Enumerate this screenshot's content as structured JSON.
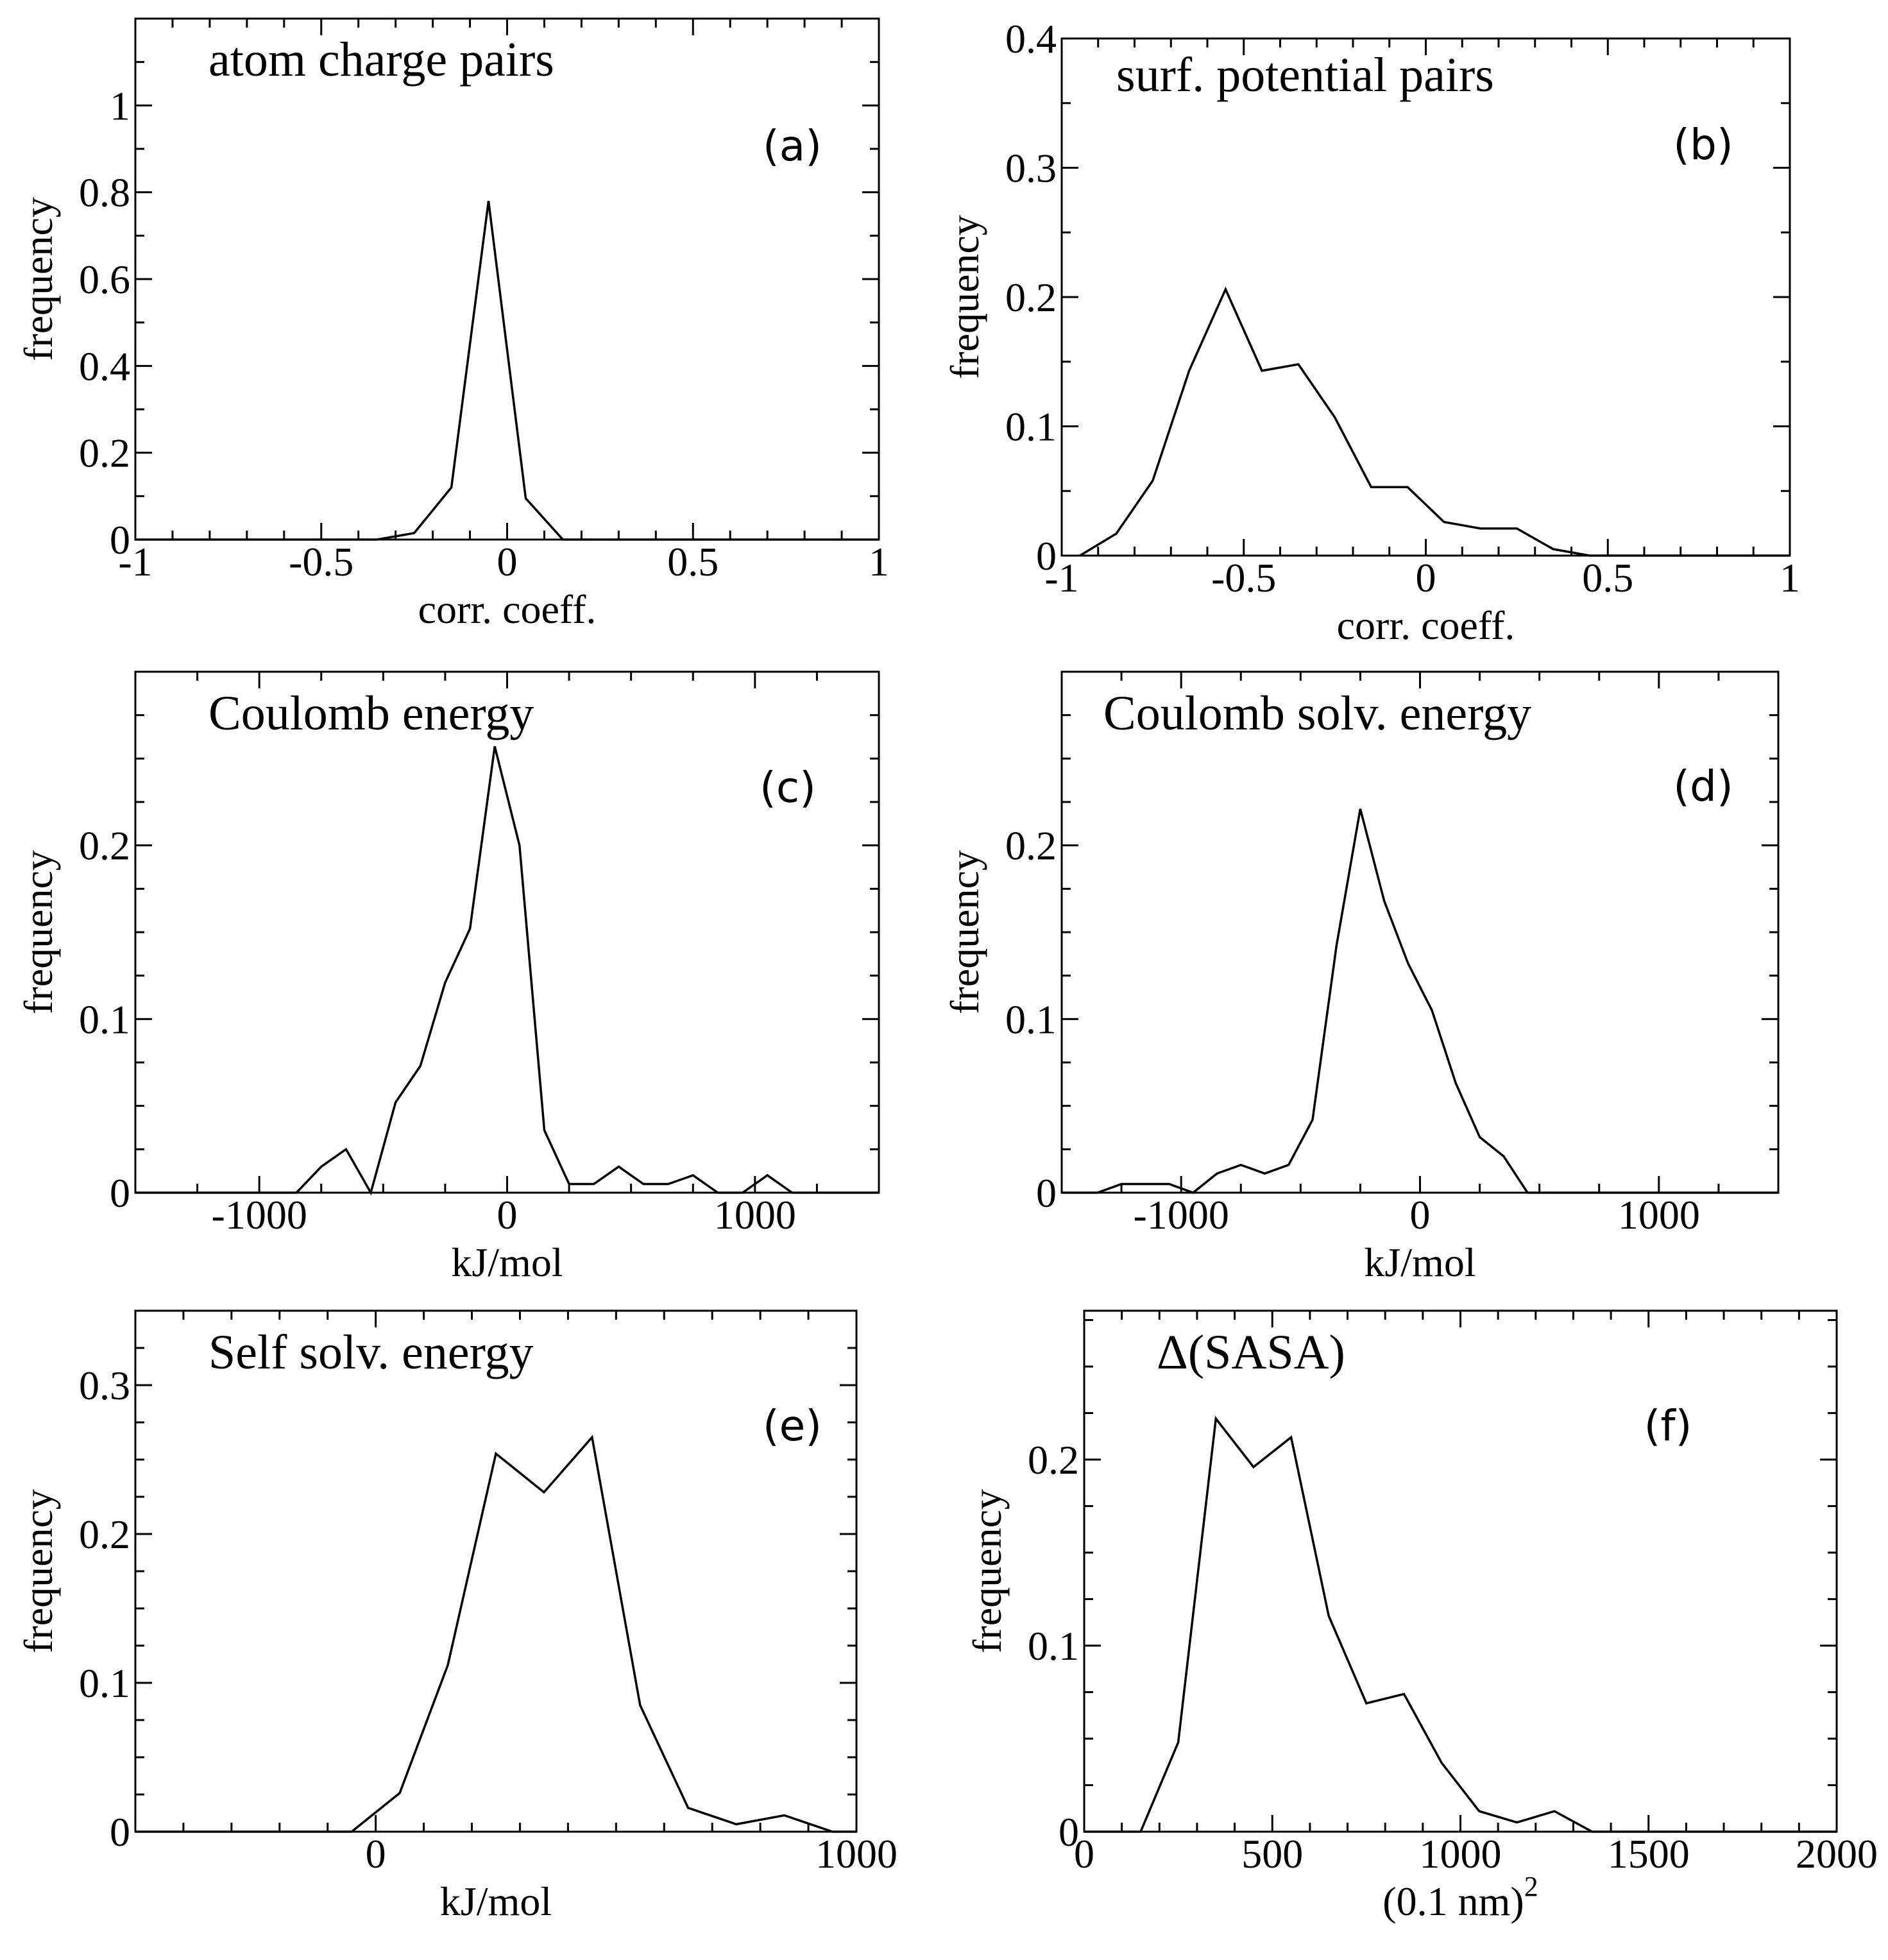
{
  "figure_title": "",
  "chart_data": [
    {
      "id": "a",
      "type": "line",
      "panel_label": "(a)",
      "title": "atom charge pairs",
      "xlabel": "corr. coeff.",
      "ylabel": "frequency",
      "xlim": [
        -1,
        1
      ],
      "ylim": [
        0,
        1.2
      ],
      "xticks": [
        -1,
        -0.5,
        0,
        0.5,
        1
      ],
      "xtick_labels": [
        "-1",
        "-0.5",
        "0",
        "0.5",
        "1"
      ],
      "yticks": [
        0,
        0.2,
        0.4,
        0.6,
        0.8,
        1
      ],
      "ytick_labels": [
        "0",
        "0.2",
        "0.4",
        "0.6",
        "0.8",
        "1"
      ],
      "x_minor": 0.1,
      "y_minor": 0.1,
      "x": [
        -1,
        -0.35,
        -0.25,
        -0.15,
        -0.05,
        0.05,
        0.15,
        1
      ],
      "y": [
        0,
        0,
        0.015,
        0.12,
        0.78,
        0.095,
        0,
        0
      ]
    },
    {
      "id": "b",
      "type": "line",
      "panel_label": "(b)",
      "title": "surf. potential pairs",
      "xlabel": "corr. coeff.",
      "ylabel": "frequency",
      "xlim": [
        -1,
        1
      ],
      "ylim": [
        0,
        0.4
      ],
      "xticks": [
        -1,
        -0.5,
        0,
        0.5,
        1
      ],
      "xtick_labels": [
        "-1",
        "-0.5",
        "0",
        "0.5",
        "1"
      ],
      "yticks": [
        0,
        0.1,
        0.2,
        0.3,
        0.4
      ],
      "ytick_labels": [
        "0",
        "0.1",
        "0.2",
        "0.3",
        "0.4"
      ],
      "x_minor": 0.1,
      "y_minor": 0.05,
      "x": [
        -0.95,
        -0.85,
        -0.75,
        -0.65,
        -0.55,
        -0.45,
        -0.35,
        -0.25,
        -0.15,
        -0.05,
        0.05,
        0.15,
        0.25,
        0.35,
        0.45,
        1
      ],
      "y": [
        0,
        0.017,
        0.058,
        0.143,
        0.206,
        0.143,
        0.148,
        0.107,
        0.053,
        0.053,
        0.026,
        0.021,
        0.021,
        0.005,
        0,
        0
      ]
    },
    {
      "id": "c",
      "type": "line",
      "panel_label": "(c)",
      "title": "Coulomb energy",
      "xlabel": "kJ/mol",
      "ylabel": "frequency",
      "xlim": [
        -1500,
        1500
      ],
      "ylim": [
        0,
        0.3
      ],
      "xticks": [
        -1000,
        0,
        1000
      ],
      "xtick_labels": [
        "-1000",
        "0",
        "1000"
      ],
      "yticks": [
        0,
        0.1,
        0.2
      ],
      "ytick_labels": [
        "0",
        "0.1",
        "0.2"
      ],
      "x_minor": 250,
      "y_minor": 0.025,
      "x": [
        -1500,
        -850,
        -750,
        -650,
        -550,
        -450,
        -350,
        -250,
        -150,
        -50,
        50,
        150,
        250,
        350,
        450,
        550,
        650,
        750,
        850,
        950,
        1050,
        1150,
        1500
      ],
      "y": [
        0,
        0,
        0.015,
        0.025,
        0,
        0.052,
        0.073,
        0.121,
        0.152,
        0.257,
        0.2,
        0.036,
        0.005,
        0.005,
        0.015,
        0.005,
        0.005,
        0.01,
        0,
        0,
        0.01,
        0,
        0
      ]
    },
    {
      "id": "d",
      "type": "line",
      "panel_label": "(d)",
      "title": "Coulomb solv. energy",
      "xlabel": "kJ/mol",
      "ylabel": "frequency",
      "xlim": [
        -1500,
        1500
      ],
      "ylim": [
        0,
        0.3
      ],
      "xticks": [
        -1000,
        0,
        1000
      ],
      "xtick_labels": [
        "-1000",
        "0",
        "1000"
      ],
      "yticks": [
        0,
        0.1,
        0.2
      ],
      "ytick_labels": [
        "0",
        "0.1",
        "0.2"
      ],
      "x_minor": 250,
      "y_minor": 0.025,
      "x": [
        -1500,
        -1450,
        -1350,
        -1250,
        -1150,
        -1050,
        -950,
        -850,
        -750,
        -650,
        -550,
        -450,
        -350,
        -250,
        -150,
        -50,
        50,
        150,
        250,
        350,
        450,
        1500
      ],
      "y": [
        0,
        0,
        0,
        0.005,
        0.005,
        0.005,
        0,
        0.011,
        0.016,
        0.011,
        0.016,
        0.042,
        0.142,
        0.221,
        0.168,
        0.132,
        0.105,
        0.063,
        0.032,
        0.021,
        0,
        0
      ]
    },
    {
      "id": "e",
      "type": "line",
      "panel_label": "(e)",
      "title": "Self solv. energy",
      "xlabel": "kJ/mol",
      "ylabel": "frequency",
      "xlim": [
        -500,
        1000
      ],
      "ylim": [
        0,
        0.35
      ],
      "xticks": [
        0,
        1000
      ],
      "xtick_labels": [
        "0",
        "1000"
      ],
      "yticks": [
        0,
        0.1,
        0.2,
        0.3
      ],
      "ytick_labels": [
        "0",
        "0.1",
        "0.2",
        "0.3"
      ],
      "x_minor": 100,
      "y_minor": 0.025,
      "x": [
        -500,
        -50,
        50,
        150,
        250,
        350,
        450,
        550,
        650,
        750,
        850,
        950,
        1000
      ],
      "y": [
        0,
        0,
        0.026,
        0.112,
        0.254,
        0.228,
        0.265,
        0.085,
        0.016,
        0.005,
        0.011,
        0,
        0
      ]
    },
    {
      "id": "f",
      "type": "line",
      "panel_label": "(f)",
      "title": "Δ(SASA)",
      "xlabel": "(0.1 nm)",
      "xlabel_sup": "2",
      "ylabel": "frequency",
      "xlim": [
        0,
        2000
      ],
      "ylim": [
        0,
        0.28
      ],
      "xticks": [
        0,
        500,
        1000,
        1500,
        2000
      ],
      "xtick_labels": [
        "0",
        "500",
        "1000",
        "1500",
        "2000"
      ],
      "yticks": [
        0,
        0.1,
        0.2
      ],
      "ytick_labels": [
        "0",
        "0.1",
        "0.2"
      ],
      "x_minor": 100,
      "y_minor": 0.025,
      "x": [
        0,
        150,
        250,
        350,
        450,
        550,
        650,
        750,
        850,
        950,
        1050,
        1150,
        1250,
        1350,
        2000
      ],
      "y": [
        0,
        0,
        0.048,
        0.222,
        0.196,
        0.212,
        0.116,
        0.069,
        0.074,
        0.037,
        0.011,
        0.005,
        0.011,
        0,
        0
      ]
    }
  ]
}
